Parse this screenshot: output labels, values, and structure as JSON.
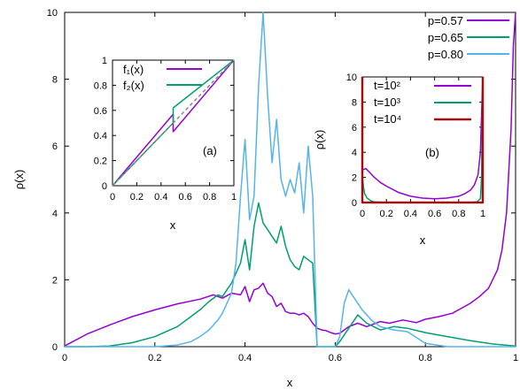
{
  "chart_data": [
    {
      "type": "line",
      "role": "main",
      "xlabel": "x",
      "ylabel": "ρ(x)",
      "xlim": [
        0,
        1
      ],
      "ylim": [
        0,
        10
      ],
      "xticks": [
        "0",
        "0.2",
        "0.4",
        "0.6",
        "0.8",
        "1"
      ],
      "yticks": [
        "0",
        "2",
        "4",
        "6",
        "8",
        "10"
      ],
      "legend_position": "top-right",
      "series": [
        {
          "name": "p=0.57",
          "color": "#9400d3",
          "points": [
            [
              0,
              0.02
            ],
            [
              0.05,
              0.38
            ],
            [
              0.1,
              0.65
            ],
            [
              0.15,
              0.9
            ],
            [
              0.2,
              1.1
            ],
            [
              0.25,
              1.28
            ],
            [
              0.3,
              1.42
            ],
            [
              0.33,
              1.55
            ],
            [
              0.35,
              1.45
            ],
            [
              0.37,
              1.6
            ],
            [
              0.39,
              1.55
            ],
            [
              0.4,
              1.8
            ],
            [
              0.41,
              1.35
            ],
            [
              0.42,
              1.7
            ],
            [
              0.43,
              1.75
            ],
            [
              0.44,
              1.9
            ],
            [
              0.45,
              1.6
            ],
            [
              0.46,
              1.5
            ],
            [
              0.47,
              1.2
            ],
            [
              0.48,
              1.3
            ],
            [
              0.49,
              1.05
            ],
            [
              0.5,
              1.0
            ],
            [
              0.51,
              1.0
            ],
            [
              0.52,
              0.95
            ],
            [
              0.53,
              1.0
            ],
            [
              0.54,
              0.9
            ],
            [
              0.55,
              0.7
            ],
            [
              0.56,
              0.55
            ],
            [
              0.57,
              0.5
            ],
            [
              0.58,
              0.48
            ],
            [
              0.59,
              0.42
            ],
            [
              0.6,
              0.38
            ],
            [
              0.61,
              0.4
            ],
            [
              0.62,
              0.5
            ],
            [
              0.63,
              0.6
            ],
            [
              0.65,
              0.7
            ],
            [
              0.67,
              0.6
            ],
            [
              0.7,
              0.75
            ],
            [
              0.72,
              0.7
            ],
            [
              0.75,
              0.8
            ],
            [
              0.78,
              0.72
            ],
            [
              0.8,
              0.82
            ],
            [
              0.83,
              0.9
            ],
            [
              0.86,
              1.0
            ],
            [
              0.88,
              1.15
            ],
            [
              0.9,
              1.3
            ],
            [
              0.92,
              1.5
            ],
            [
              0.94,
              1.75
            ],
            [
              0.96,
              2.3
            ],
            [
              0.97,
              2.9
            ],
            [
              0.98,
              4.0
            ],
            [
              0.99,
              6.5
            ],
            [
              0.995,
              9.0
            ],
            [
              1.0,
              10.0
            ]
          ]
        },
        {
          "name": "p=0.65",
          "color": "#009e73",
          "points": [
            [
              0,
              0.0
            ],
            [
              0.05,
              0.0
            ],
            [
              0.1,
              0.02
            ],
            [
              0.15,
              0.12
            ],
            [
              0.2,
              0.3
            ],
            [
              0.25,
              0.6
            ],
            [
              0.28,
              0.9
            ],
            [
              0.3,
              1.1
            ],
            [
              0.32,
              1.35
            ],
            [
              0.34,
              1.55
            ],
            [
              0.35,
              1.5
            ],
            [
              0.36,
              1.7
            ],
            [
              0.37,
              1.9
            ],
            [
              0.38,
              2.2
            ],
            [
              0.39,
              2.5
            ],
            [
              0.4,
              3.2
            ],
            [
              0.41,
              2.3
            ],
            [
              0.42,
              3.6
            ],
            [
              0.43,
              4.3
            ],
            [
              0.44,
              3.7
            ],
            [
              0.45,
              3.5
            ],
            [
              0.46,
              3.3
            ],
            [
              0.47,
              3.1
            ],
            [
              0.48,
              3.6
            ],
            [
              0.49,
              3.0
            ],
            [
              0.5,
              2.6
            ],
            [
              0.51,
              2.4
            ],
            [
              0.52,
              2.3
            ],
            [
              0.53,
              2.7
            ],
            [
              0.54,
              2.6
            ],
            [
              0.55,
              2.5
            ],
            [
              0.56,
              0.0
            ],
            [
              0.6,
              0.0
            ],
            [
              0.61,
              0.15
            ],
            [
              0.63,
              0.55
            ],
            [
              0.65,
              0.95
            ],
            [
              0.67,
              0.7
            ],
            [
              0.7,
              0.5
            ],
            [
              0.73,
              0.6
            ],
            [
              0.76,
              0.55
            ],
            [
              0.8,
              0.42
            ],
            [
              0.85,
              0.3
            ],
            [
              0.9,
              0.18
            ],
            [
              0.95,
              0.08
            ],
            [
              1.0,
              0.02
            ]
          ]
        },
        {
          "name": "p=0.80",
          "color": "#56b4e9",
          "points": [
            [
              0,
              0.0
            ],
            [
              0.2,
              0.0
            ],
            [
              0.25,
              0.05
            ],
            [
              0.28,
              0.15
            ],
            [
              0.3,
              0.3
            ],
            [
              0.32,
              0.5
            ],
            [
              0.34,
              0.8
            ],
            [
              0.35,
              1.0
            ],
            [
              0.36,
              1.3
            ],
            [
              0.37,
              1.6
            ],
            [
              0.38,
              2.5
            ],
            [
              0.39,
              4.5
            ],
            [
              0.4,
              6.2
            ],
            [
              0.41,
              3.8
            ],
            [
              0.42,
              4.5
            ],
            [
              0.43,
              7.8
            ],
            [
              0.44,
              10.0
            ],
            [
              0.45,
              7.5
            ],
            [
              0.46,
              5.5
            ],
            [
              0.47,
              6.8
            ],
            [
              0.48,
              5.0
            ],
            [
              0.49,
              4.5
            ],
            [
              0.5,
              5.0
            ],
            [
              0.51,
              4.6
            ],
            [
              0.52,
              5.5
            ],
            [
              0.53,
              4.0
            ],
            [
              0.54,
              6.0
            ],
            [
              0.55,
              4.5
            ],
            [
              0.56,
              0.0
            ],
            [
              0.6,
              0.0
            ],
            [
              0.61,
              0.3
            ],
            [
              0.62,
              1.3
            ],
            [
              0.63,
              1.7
            ],
            [
              0.64,
              1.5
            ],
            [
              0.66,
              1.1
            ],
            [
              0.68,
              0.8
            ],
            [
              0.7,
              0.6
            ],
            [
              0.73,
              0.5
            ],
            [
              0.76,
              0.45
            ],
            [
              0.8,
              0.1
            ],
            [
              0.85,
              0.0
            ],
            [
              1.0,
              0.0
            ]
          ]
        }
      ]
    },
    {
      "type": "line",
      "role": "inset",
      "label": "(a)",
      "xlabel": "x",
      "xlim": [
        0,
        1
      ],
      "ylim": [
        0,
        1
      ],
      "xticks": [
        "0",
        "0.2",
        "0.4",
        "0.6",
        "0.8",
        "1"
      ],
      "yticks": [
        "0",
        "0.2",
        "0.4",
        "0.6",
        "0.8",
        "1"
      ],
      "legend_position": "top-right",
      "series": [
        {
          "name": "f₁(x)",
          "color": "#9400d3",
          "points": [
            [
              0,
              0
            ],
            [
              0.5,
              0.57
            ],
            [
              0.5,
              0.43
            ],
            [
              1,
              1
            ]
          ]
        },
        {
          "name": "f₂(x)",
          "color": "#009e73",
          "points": [
            [
              0,
              0
            ],
            [
              0.5,
              0.5
            ],
            [
              0.5,
              0.62
            ],
            [
              1,
              1
            ]
          ]
        },
        {
          "name": "",
          "color": "#888888",
          "dashed": true,
          "points": [
            [
              0,
              0
            ],
            [
              1,
              1
            ]
          ]
        }
      ]
    },
    {
      "type": "line",
      "role": "inset",
      "label": "(b)",
      "xlabel": "x",
      "ylabel": "ρ(x)",
      "xlim": [
        0,
        1
      ],
      "ylim": [
        0,
        10
      ],
      "xticks": [
        "0",
        "0.2",
        "0.4",
        "0.6",
        "0.8",
        "1"
      ],
      "yticks": [
        "0",
        "2",
        "4",
        "6",
        "8",
        "10"
      ],
      "legend_position": "top-right",
      "series": [
        {
          "name": "t=10²",
          "color": "#9400d3",
          "points": [
            [
              0,
              2.6
            ],
            [
              0.03,
              2.7
            ],
            [
              0.06,
              2.4
            ],
            [
              0.1,
              2.0
            ],
            [
              0.15,
              1.6
            ],
            [
              0.2,
              1.3
            ],
            [
              0.3,
              0.8
            ],
            [
              0.4,
              0.5
            ],
            [
              0.5,
              0.35
            ],
            [
              0.6,
              0.3
            ],
            [
              0.7,
              0.35
            ],
            [
              0.8,
              0.5
            ],
            [
              0.85,
              0.7
            ],
            [
              0.9,
              1.0
            ],
            [
              0.93,
              1.4
            ],
            [
              0.96,
              2.2
            ],
            [
              0.98,
              4.0
            ],
            [
              0.99,
              7.0
            ],
            [
              1.0,
              10.0
            ]
          ]
        },
        {
          "name": "t=10³",
          "color": "#009e73",
          "points": [
            [
              0,
              2.2
            ],
            [
              0.01,
              1.2
            ],
            [
              0.02,
              0.7
            ],
            [
              0.04,
              0.35
            ],
            [
              0.07,
              0.15
            ],
            [
              0.1,
              0.05
            ],
            [
              0.2,
              0.0
            ],
            [
              0.9,
              0.0
            ],
            [
              0.95,
              0.05
            ],
            [
              0.98,
              0.3
            ],
            [
              0.99,
              2.0
            ],
            [
              1.0,
              10.0
            ]
          ]
        },
        {
          "name": "t=10⁴",
          "color": "#a01010",
          "points": [
            [
              0,
              10.0
            ],
            [
              0.0,
              0.0
            ],
            [
              1.0,
              0.0
            ],
            [
              1.0,
              10.0
            ]
          ]
        }
      ]
    }
  ]
}
